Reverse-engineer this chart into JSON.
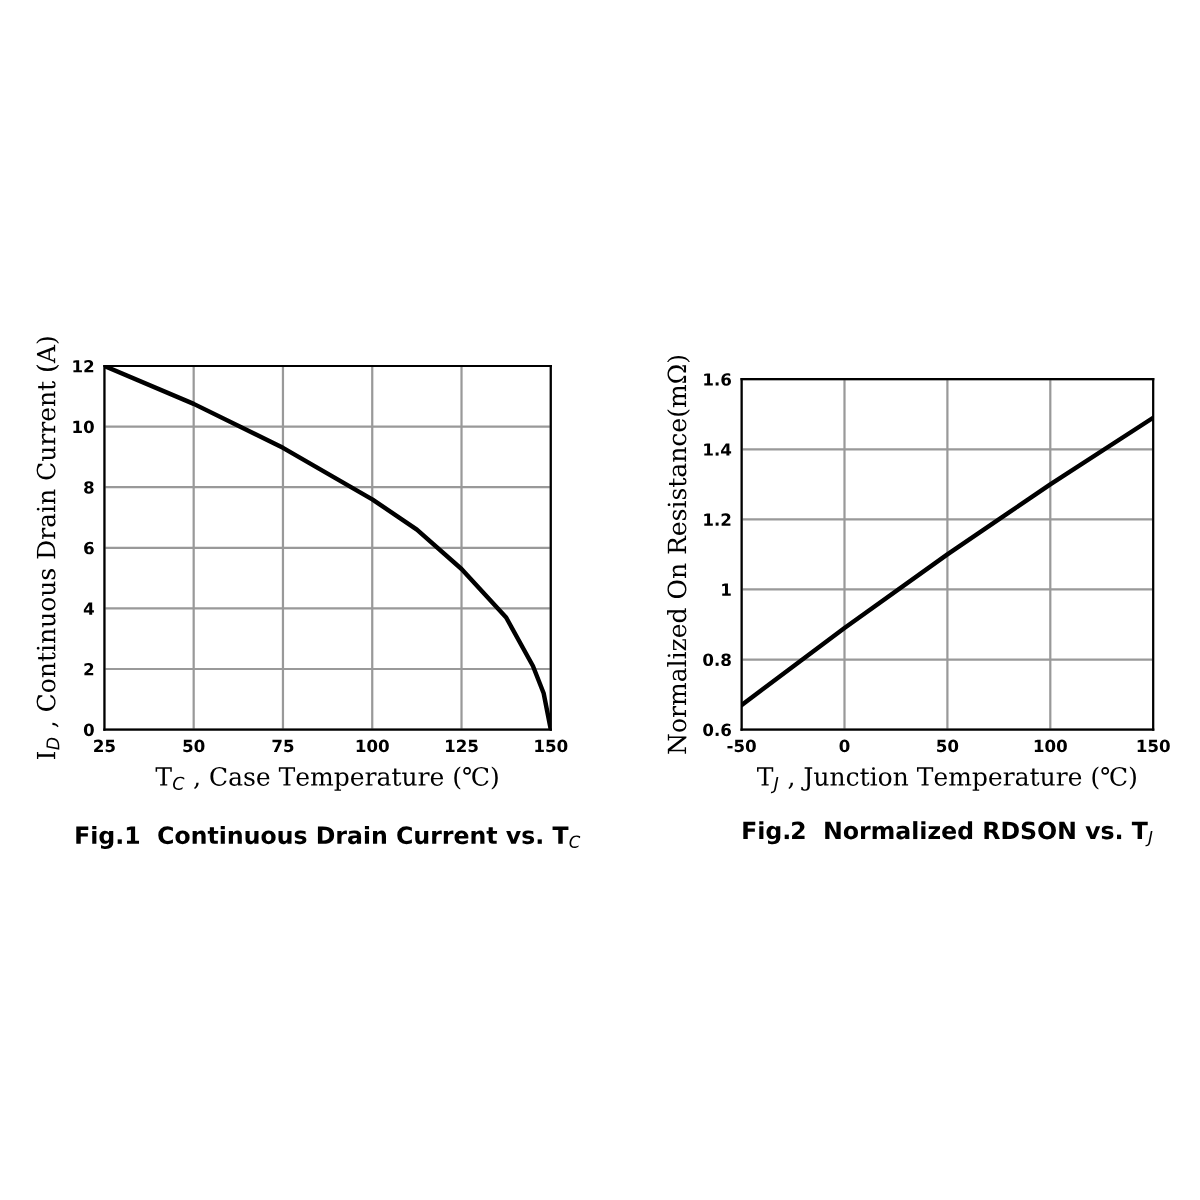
{
  "chart_data": [
    {
      "type": "line",
      "title": "Fig.1  Continuous Drain Current vs. T$_{C}$",
      "xlabel": "T$_{C}$ , Case Temperature (℃)",
      "ylabel": "I$_{D}$ , Continuous Drain Current (A)",
      "xlim": [
        25,
        150
      ],
      "ylim": [
        0,
        12
      ],
      "xticks": [
        25,
        50,
        75,
        100,
        125,
        150
      ],
      "yticks": [
        0,
        2,
        4,
        6,
        8,
        10,
        12
      ],
      "grid": true,
      "series": [
        {
          "color": "#000000",
          "x": [
            25,
            50,
            75,
            100,
            112.5,
            125,
            137.5,
            145,
            148,
            150
          ],
          "values": [
            12,
            10.75,
            9.3,
            7.6,
            6.6,
            5.3,
            3.7,
            2.1,
            1.2,
            0
          ]
        }
      ]
    },
    {
      "type": "line",
      "title": "Fig.2  Normalized RDSON vs. T$_{J}$",
      "xlabel": "T$_{J}$ , Junction Temperature (℃)",
      "ylabel": "Normalized On Resistance(mΩ)",
      "xlim": [
        -50,
        150
      ],
      "ylim": [
        0.6,
        1.6
      ],
      "xticks": [
        -50,
        0,
        50,
        100,
        150
      ],
      "yticks": [
        0.6,
        0.8,
        1,
        1.2,
        1.4,
        1.6
      ],
      "grid": true,
      "series": [
        {
          "color": "#000000",
          "x": [
            -50,
            0,
            50,
            100,
            150
          ],
          "values": [
            0.67,
            0.89,
            1.1,
            1.3,
            1.49
          ]
        }
      ]
    }
  ]
}
